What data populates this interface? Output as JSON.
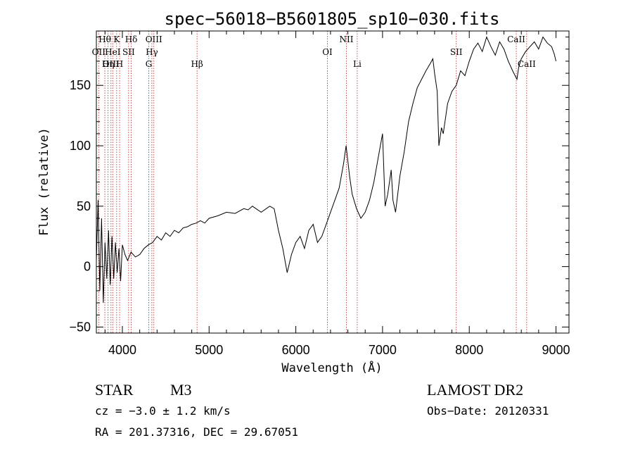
{
  "chart_data": {
    "type": "line",
    "title": "spec−56018−B5601805_sp10−030.fits",
    "xlabel": "Wavelength (Å)",
    "ylabel": "Flux (relative)",
    "xlim": [
      3700,
      9150
    ],
    "ylim": [
      -55,
      195
    ],
    "x_ticks": [
      4000,
      5000,
      6000,
      7000,
      8000,
      9000
    ],
    "y_ticks": [
      -50,
      0,
      50,
      100,
      150
    ],
    "x_tick_labels": [
      "4000",
      "5000",
      "6000",
      "7000",
      "8000",
      "9000"
    ],
    "y_tick_labels": [
      "−50",
      "0",
      "50",
      "100",
      "150"
    ],
    "grid": false,
    "series": [
      {
        "x": [
          3700,
          3720,
          3740,
          3760,
          3780,
          3800,
          3820,
          3840,
          3860,
          3880,
          3900,
          3920,
          3940,
          3960,
          3980,
          4000,
          4030,
          4060,
          4100,
          4150,
          4200,
          4250,
          4300,
          4350,
          4400,
          4450,
          4500,
          4550,
          4600,
          4650,
          4700,
          4750,
          4800,
          4850,
          4900,
          4950,
          5000,
          5100,
          5200,
          5300,
          5400,
          5450,
          5500,
          5600,
          5700,
          5750,
          5800,
          5850,
          5900,
          5950,
          6000,
          6050,
          6100,
          6150,
          6200,
          6250,
          6300,
          6350,
          6400,
          6450,
          6500,
          6550,
          6580,
          6620,
          6650,
          6700,
          6750,
          6800,
          6850,
          6900,
          6950,
          7000,
          7030,
          7060,
          7100,
          7120,
          7150,
          7200,
          7250,
          7300,
          7350,
          7400,
          7450,
          7500,
          7550,
          7580,
          7600,
          7630,
          7650,
          7680,
          7700,
          7750,
          7800,
          7850,
          7900,
          7950,
          8000,
          8050,
          8100,
          8150,
          8200,
          8250,
          8300,
          8350,
          8400,
          8450,
          8500,
          8550,
          8570,
          8600,
          8650,
          8700,
          8750,
          8800,
          8850,
          8900,
          8950,
          8980,
          9000
        ],
        "y": [
          5,
          55,
          -20,
          40,
          -30,
          20,
          -10,
          30,
          -15,
          25,
          -10,
          20,
          -5,
          15,
          -12,
          18,
          10,
          5,
          12,
          8,
          10,
          15,
          18,
          20,
          25,
          22,
          28,
          25,
          30,
          28,
          32,
          33,
          35,
          36,
          38,
          36,
          40,
          42,
          45,
          44,
          48,
          47,
          50,
          45,
          50,
          48,
          30,
          15,
          -5,
          10,
          20,
          25,
          15,
          30,
          35,
          20,
          25,
          35,
          45,
          55,
          65,
          85,
          100,
          75,
          60,
          48,
          40,
          45,
          55,
          70,
          90,
          110,
          50,
          60,
          80,
          55,
          45,
          75,
          95,
          120,
          135,
          148,
          155,
          162,
          168,
          172,
          160,
          145,
          100,
          115,
          110,
          135,
          145,
          150,
          162,
          158,
          170,
          180,
          185,
          178,
          190,
          182,
          175,
          186,
          180,
          170,
          162,
          155,
          165,
          172,
          178,
          182,
          186,
          180,
          190,
          185,
          182,
          176,
          170
        ]
      }
    ],
    "spectral_lines": [
      {
        "name": "Hθ",
        "x": 3798,
        "row": 0
      },
      {
        "name": "K",
        "x": 3934,
        "row": 0
      },
      {
        "name": "Hδ",
        "x": 4102,
        "row": 0
      },
      {
        "name": "OIII",
        "x": 4363,
        "row": 0
      },
      {
        "name": "NII",
        "x": 6583,
        "row": 0
      },
      {
        "name": "CaII",
        "x": 8542,
        "row": 0
      },
      {
        "name": "OII",
        "x": 3727,
        "row": 1
      },
      {
        "name": "HeI",
        "x": 3889,
        "row": 1
      },
      {
        "name": "SII",
        "x": 4072,
        "row": 1
      },
      {
        "name": "Hγ",
        "x": 4340,
        "row": 1
      },
      {
        "name": "OI",
        "x": 6364,
        "row": 1
      },
      {
        "name": "SII",
        "x": 7850,
        "row": 1
      },
      {
        "name": "OIII",
        "x": 3869,
        "row": 2
      },
      {
        "name": "Hη",
        "x": 3835,
        "row": 2
      },
      {
        "name": "H",
        "x": 3968,
        "row": 2
      },
      {
        "name": "G",
        "x": 4305,
        "row": 2
      },
      {
        "name": "Hβ",
        "x": 4861,
        "row": 2
      },
      {
        "name": "Li",
        "x": 6708,
        "row": 2
      },
      {
        "name": "CaII",
        "x": 8662,
        "row": 2
      }
    ]
  },
  "info": {
    "object_class": "STAR",
    "subclass": "M3",
    "survey": "LAMOST DR2",
    "redshift": "cz = −3.0 ± 1.2 km/s",
    "obs_date": "Obs−Date: 20120331",
    "coords": "RA = 201.37316, DEC =  29.67051"
  }
}
